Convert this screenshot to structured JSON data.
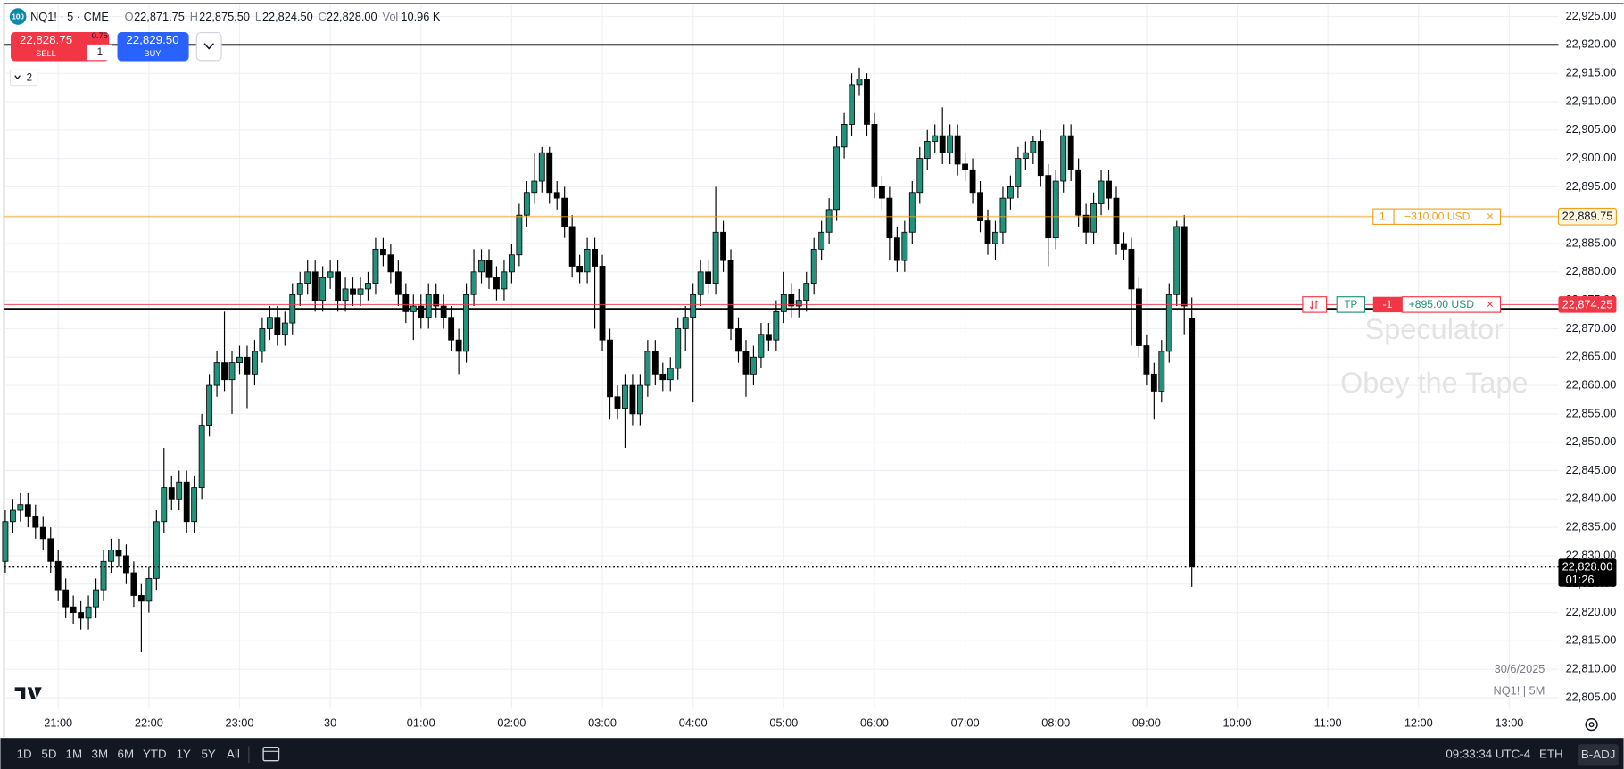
{
  "header": {
    "badge": "100",
    "symbol": "NQ1! · 5 · CME",
    "o_label": "O",
    "o_value": "22,871.75",
    "h_label": "H",
    "h_value": "22,875.50",
    "l_label": "L",
    "l_value": "22,824.50",
    "c_label": "C",
    "c_value": "22,828.00",
    "vol_label": "Vol",
    "vol_value": "10.96 K"
  },
  "trade_panel": {
    "sell_price": "22,828.75",
    "sell_label": "SELL",
    "spread": "0.75",
    "quantity": "1",
    "buy_price": "22,829.50",
    "buy_label": "BUY",
    "indicators_count": "2"
  },
  "watermark": {
    "line1": "Speculator",
    "line2": "Obey the Tape"
  },
  "info": {
    "date": "30/6/2025",
    "symbol_interval": "NQ1! | 5M"
  },
  "toolbar": {
    "ranges": [
      "1D",
      "5D",
      "1M",
      "3M",
      "6M",
      "YTD",
      "1Y",
      "5Y",
      "All"
    ],
    "time": "09:33:34 UTC-4",
    "session": "ETH",
    "adjustment": "B-ADJ"
  },
  "chart_data": {
    "type": "candlestick",
    "up_color": "#22927a",
    "down_color": "#000000",
    "grid": true,
    "grid_color": "#eef0f4",
    "xlim": [
      -0.1,
      205.5
    ],
    "xticks": [
      {
        "value": 7,
        "label": "21:00"
      },
      {
        "value": 19,
        "label": "22:00"
      },
      {
        "value": 31,
        "label": "23:00"
      },
      {
        "value": 43,
        "label": "30"
      },
      {
        "value": 55,
        "label": "01:00"
      },
      {
        "value": 67,
        "label": "02:00"
      },
      {
        "value": 79,
        "label": "03:00"
      },
      {
        "value": 91,
        "label": "04:00"
      },
      {
        "value": 103,
        "label": "05:00"
      },
      {
        "value": 115,
        "label": "06:00"
      },
      {
        "value": 127,
        "label": "07:00"
      },
      {
        "value": 139,
        "label": "08:00"
      },
      {
        "value": 151,
        "label": "09:00"
      },
      {
        "value": 163,
        "label": "10:00"
      },
      {
        "value": 175,
        "label": "11:00"
      },
      {
        "value": 187,
        "label": "12:00"
      },
      {
        "value": 199,
        "label": "13:00"
      }
    ],
    "ylim": [
      22803,
      22927
    ],
    "yticks": [
      {
        "value": 22805,
        "label": "22,805.00"
      },
      {
        "value": 22810,
        "label": "22,810.00"
      },
      {
        "value": 22815,
        "label": "22,815.00"
      },
      {
        "value": 22820,
        "label": "22,820.00"
      },
      {
        "value": 22825,
        "label": "22,825.00"
      },
      {
        "value": 22830,
        "label": "22,830.00"
      },
      {
        "value": 22835,
        "label": "22,835.00"
      },
      {
        "value": 22840,
        "label": "22,840.00"
      },
      {
        "value": 22845,
        "label": "22,845.00"
      },
      {
        "value": 22850,
        "label": "22,850.00"
      },
      {
        "value": 22855,
        "label": "22,855.00"
      },
      {
        "value": 22860,
        "label": "22,860.00"
      },
      {
        "value": 22865,
        "label": "22,865.00"
      },
      {
        "value": 22870,
        "label": "22,870.00"
      },
      {
        "value": 22875,
        "label": "22,875.00"
      },
      {
        "value": 22880,
        "label": "22,880.00"
      },
      {
        "value": 22885,
        "label": "22,885.00"
      },
      {
        "value": 22890,
        "label": "22,890.00"
      },
      {
        "value": 22895,
        "label": "22,895.00"
      },
      {
        "value": 22900,
        "label": "22,900.00"
      },
      {
        "value": 22905,
        "label": "22,905.00"
      },
      {
        "value": 22910,
        "label": "22,910.00"
      },
      {
        "value": 22915,
        "label": "22,915.00"
      },
      {
        "value": 22920,
        "label": "22,920.00"
      },
      {
        "value": 22925,
        "label": "22,925.00"
      }
    ],
    "open": [
      22829,
      22836,
      22838,
      22839,
      22837,
      22835,
      22833,
      22829,
      22824,
      22821,
      22820,
      22819,
      22821,
      22824,
      22829,
      22831,
      22830,
      22827,
      22823,
      22822,
      22826,
      22836,
      22842,
      22840,
      22843,
      22836,
      22842,
      22853,
      22860,
      22864,
      22861,
      22864,
      22865,
      22862,
      22866,
      22870,
      22872,
      22869,
      22871,
      22876,
      22878,
      22880,
      22875,
      22879,
      22880,
      22875,
      22877,
      22876,
      22877,
      22878,
      22884,
      22883,
      22880,
      22876,
      22873,
      22874,
      22872,
      22876,
      22874,
      22872,
      22868,
      22866,
      22876,
      22880,
      22882,
      22879,
      22877,
      22880,
      22883,
      22890,
      22894,
      22896,
      22901,
      22894,
      22893,
      22888,
      22881,
      22880,
      22884,
      22881,
      22868,
      22858,
      22856,
      22860,
      22855,
      22860,
      22866,
      22862,
      22861,
      22863,
      22870,
      22872,
      22876,
      22880,
      22878,
      22887,
      22882,
      22870,
      22866,
      22862,
      22865,
      22869,
      22868,
      22873,
      22876,
      22874,
      22875,
      22878,
      22884,
      22887,
      22891,
      22902,
      22906,
      22913,
      22914,
      22906,
      22895,
      22893,
      22886,
      22882,
      22887,
      22894,
      22900,
      22903,
      22904,
      22901,
      22904,
      22899,
      22898,
      22894,
      22889,
      22885,
      22887,
      22893,
      22895,
      22900,
      22901,
      22903,
      22897,
      22886,
      22896,
      22904,
      22898,
      22890,
      22887,
      22892,
      22896,
      22893,
      22885,
      22884,
      22877,
      22867,
      22862,
      22859,
      22866,
      22876,
      22888,
      22871.75
    ],
    "high": [
      22838,
      22840,
      22841,
      22841,
      22839,
      22837,
      22835,
      22831,
      22826,
      22823,
      22822,
      22823,
      22826,
      22831,
      22833,
      22833,
      22832,
      22829,
      22825,
      22828,
      22838,
      22849,
      22844,
      22845,
      22845,
      22844,
      22855,
      22862,
      22866,
      22873,
      22866,
      22867,
      22867,
      22868,
      22872,
      22874,
      22874,
      22873,
      22878,
      22880,
      22882,
      22882,
      22881,
      22882,
      22882,
      22879,
      22879,
      22879,
      22880,
      22886,
      22886,
      22885,
      22882,
      22878,
      22876,
      22876,
      22878,
      22878,
      22876,
      22874,
      22870,
      22878,
      22884,
      22884,
      22884,
      22881,
      22882,
      22885,
      22892,
      22896,
      22901,
      22902,
      22902,
      22896,
      22895,
      22890,
      22883,
      22886,
      22886,
      22883,
      22870,
      22860,
      22862,
      22862,
      22862,
      22868,
      22868,
      22864,
      22865,
      22872,
      22874,
      22878,
      22882,
      22882,
      22895,
      22889,
      22884,
      22872,
      22868,
      22867,
      22871,
      22871,
      22875,
      22880,
      22878,
      22877,
      22880,
      22886,
      22889,
      22893,
      22904,
      22908,
      22915,
      22916,
      22915,
      22908,
      22897,
      22895,
      22888,
      22889,
      22896,
      22902,
      22905,
      22906,
      22909,
      22906,
      22906,
      22901,
      22900,
      22896,
      22891,
      22889,
      22895,
      22897,
      22902,
      22903,
      22904,
      22905,
      22899,
      22898,
      22906,
      22906,
      22900,
      22892,
      22894,
      22898,
      22898,
      22895,
      22887,
      22886,
      22879,
      22869,
      22864,
      22868,
      22878,
      22889,
      22890,
      22875.5
    ],
    "low": [
      22827,
      22834,
      22836,
      22835,
      22833,
      22831,
      22827,
      22822,
      22819,
      22818,
      22817,
      22817,
      22819,
      22822,
      22827,
      22828,
      22825,
      22821,
      22813,
      22820,
      22824,
      22834,
      22838,
      22838,
      22834,
      22834,
      22840,
      22851,
      22858,
      22859,
      22855,
      22862,
      22856,
      22860,
      22864,
      22868,
      22867,
      22867,
      22869,
      22874,
      22876,
      22873,
      22873,
      22877,
      22873,
      22873,
      22874,
      22874,
      22875,
      22876,
      22881,
      22878,
      22874,
      22871,
      22868,
      22870,
      22870,
      22872,
      22870,
      22866,
      22862,
      22864,
      22874,
      22878,
      22877,
      22875,
      22875,
      22878,
      22881,
      22888,
      22892,
      22894,
      22892,
      22891,
      22886,
      22879,
      22878,
      22878,
      22870,
      22866,
      22854,
      22854,
      22849,
      22853,
      22853,
      22858,
      22860,
      22859,
      22859,
      22861,
      22866,
      22857,
      22874,
      22876,
      22876,
      22880,
      22868,
      22864,
      22858,
      22860,
      22863,
      22866,
      22866,
      22871,
      22872,
      22872,
      22873,
      22876,
      22882,
      22885,
      22889,
      22900,
      22904,
      22911,
      22904,
      22893,
      22891,
      22882,
      22880,
      22880,
      22885,
      22892,
      22898,
      22901,
      22899,
      22899,
      22897,
      22896,
      22892,
      22887,
      22883,
      22882,
      22885,
      22891,
      22893,
      22898,
      22899,
      22895,
      22881,
      22884,
      22894,
      22896,
      22888,
      22885,
      22885,
      22890,
      22891,
      22883,
      22882,
      22867,
      22865,
      22860,
      22854,
      22857,
      22864,
      22874,
      22869,
      22824.5
    ],
    "close": [
      22836,
      22838,
      22839,
      22837,
      22835,
      22833,
      22829,
      22824,
      22821,
      22820,
      22819,
      22821,
      22824,
      22829,
      22831,
      22830,
      22827,
      22823,
      22822,
      22826,
      22836,
      22842,
      22840,
      22843,
      22836,
      22842,
      22853,
      22860,
      22864,
      22861,
      22864,
      22865,
      22862,
      22866,
      22870,
      22872,
      22869,
      22871,
      22876,
      22878,
      22880,
      22875,
      22879,
      22880,
      22875,
      22877,
      22876,
      22877,
      22878,
      22884,
      22883,
      22880,
      22876,
      22873,
      22874,
      22872,
      22876,
      22874,
      22872,
      22868,
      22866,
      22876,
      22880,
      22882,
      22879,
      22877,
      22880,
      22883,
      22890,
      22894,
      22896,
      22901,
      22894,
      22893,
      22888,
      22881,
      22880,
      22884,
      22881,
      22868,
      22858,
      22856,
      22860,
      22855,
      22860,
      22866,
      22862,
      22861,
      22863,
      22870,
      22872,
      22876,
      22880,
      22878,
      22887,
      22882,
      22870,
      22866,
      22862,
      22865,
      22869,
      22868,
      22873,
      22876,
      22874,
      22875,
      22878,
      22884,
      22887,
      22891,
      22902,
      22906,
      22913,
      22914,
      22906,
      22895,
      22893,
      22886,
      22882,
      22887,
      22894,
      22900,
      22903,
      22904,
      22901,
      22904,
      22899,
      22898,
      22894,
      22889,
      22885,
      22887,
      22893,
      22895,
      22900,
      22901,
      22903,
      22897,
      22886,
      22896,
      22904,
      22898,
      22890,
      22887,
      22892,
      22896,
      22893,
      22885,
      22884,
      22877,
      22867,
      22862,
      22859,
      22866,
      22876,
      22888,
      22874,
      22828
    ],
    "hlines": [
      22920,
      22873.5
    ],
    "hline_color": "#000000",
    "orders": [
      {
        "value": 22889.75,
        "color": "#f0a020",
        "qty": "1",
        "pnl": "−310.00 USD",
        "close": "×",
        "price_label": "22,889.75"
      },
      {
        "value": 22874.25,
        "color": "#f23645",
        "tag": "TP",
        "qty": "-1",
        "pnl": "+895.00 USD",
        "close": "×",
        "price_label": "22,874.25"
      }
    ],
    "last_price": {
      "value": 22828,
      "label": "22,828.00",
      "countdown": "01:26"
    }
  }
}
